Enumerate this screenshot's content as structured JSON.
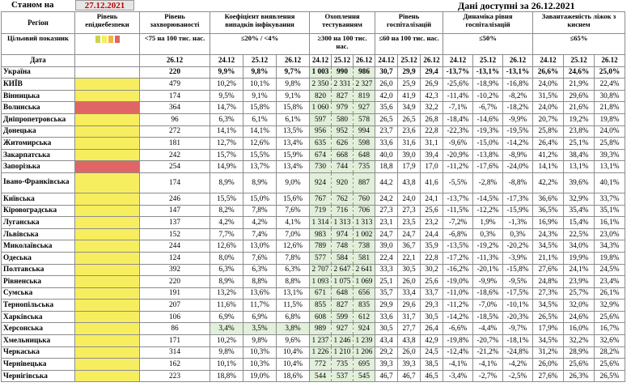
{
  "header": {
    "as_of_label": "Станом на",
    "as_of_date": "27.12.2021",
    "data_available": "Дані доступні за  26.12.2021"
  },
  "columns": {
    "region": "Регіон",
    "epid_level": "Рівень епіднебезпеки",
    "incidence": "Рівень захворюваності",
    "detection": "Коефіцієнт виявлення випадків інфікування",
    "testing": "Охоплення тестуванням",
    "hospital": "Рівень госпіталізацій",
    "hosp_dynamics": "Динаміка рівня госпіталізацій",
    "oxygen": "Завантаженість ліжок з киснем"
  },
  "target_row": {
    "label": "Цільовий показник",
    "incidence": "<75 на 100 тис. нас.",
    "detection": "≤20% / <4%",
    "testing": "≥300 на 100 тис. нас.",
    "hospital": "≤60 на 100 тис. нас.",
    "hosp_dynamics": "≤50%",
    "oxygen": "≤65%"
  },
  "level_colors": [
    "#c9d64a",
    "#f6ee5f",
    "#f5b342",
    "#e06666"
  ],
  "date_row": {
    "label": "Дата",
    "incidence": "26.12",
    "dates": [
      "24.12",
      "25.12",
      "26.12"
    ]
  },
  "rows": [
    {
      "name": "Україна",
      "level": "none",
      "inc": "220",
      "det": [
        "9,9%",
        "9,8%",
        "9,7%"
      ],
      "test": [
        "1 003",
        "990",
        "986"
      ],
      "hosp": [
        "30,7",
        "29,9",
        "29,4"
      ],
      "dyn": [
        "-13,7%",
        "-13,1%",
        "-13,1%"
      ],
      "oxy": [
        "26,6%",
        "24,6%",
        "25,0%"
      ],
      "bold": true
    },
    {
      "name": "КИЇВ",
      "level": "yellow",
      "inc": "479",
      "det": [
        "10,2%",
        "10,1%",
        "9,8%"
      ],
      "test": [
        "2 350",
        "2 331",
        "2 327"
      ],
      "hosp": [
        "26,0",
        "25,9",
        "26,9"
      ],
      "dyn": [
        "-25,6%",
        "-18,9%",
        "-16,8%"
      ],
      "oxy": [
        "24,0%",
        "21,9%",
        "22,4%"
      ]
    },
    {
      "name": "Вінницька",
      "level": "yellow",
      "inc": "174",
      "det": [
        "9,5%",
        "9,1%",
        "9,1%"
      ],
      "test": [
        "820",
        "827",
        "819"
      ],
      "hosp": [
        "42,0",
        "41,9",
        "42,3"
      ],
      "dyn": [
        "-11,4%",
        "-10,2%",
        "-8,2%"
      ],
      "oxy": [
        "31,5%",
        "29,6%",
        "30,8%"
      ]
    },
    {
      "name": "Волинська",
      "level": "red",
      "inc": "364",
      "det": [
        "14,7%",
        "15,8%",
        "15,8%"
      ],
      "test": [
        "1 060",
        "979",
        "927"
      ],
      "hosp": [
        "35,6",
        "34,9",
        "32,2"
      ],
      "dyn": [
        "-7,1%",
        "-6,7%",
        "-18,2%"
      ],
      "oxy": [
        "24,0%",
        "21,6%",
        "21,8%"
      ]
    },
    {
      "name": "Дніпропетровська",
      "level": "yellow",
      "inc": "96",
      "det": [
        "6,3%",
        "6,1%",
        "6,1%"
      ],
      "test": [
        "597",
        "580",
        "578"
      ],
      "hosp": [
        "26,5",
        "26,5",
        "26,8"
      ],
      "dyn": [
        "-18,4%",
        "-14,6%",
        "-9,9%"
      ],
      "oxy": [
        "20,7%",
        "19,2%",
        "19,8%"
      ]
    },
    {
      "name": "Донецька",
      "level": "yellow",
      "inc": "272",
      "det": [
        "14,1%",
        "14,1%",
        "13,5%"
      ],
      "test": [
        "956",
        "952",
        "994"
      ],
      "hosp": [
        "23,7",
        "23,6",
        "22,8"
      ],
      "dyn": [
        "-22,3%",
        "-19,3%",
        "-19,5%"
      ],
      "oxy": [
        "25,8%",
        "23,8%",
        "24,0%"
      ]
    },
    {
      "name": "Житомирська",
      "level": "yellow",
      "inc": "181",
      "det": [
        "12,7%",
        "12,6%",
        "13,4%"
      ],
      "test": [
        "635",
        "626",
        "598"
      ],
      "hosp": [
        "33,6",
        "31,6",
        "31,1"
      ],
      "dyn": [
        "-9,6%",
        "-15,0%",
        "-14,2%"
      ],
      "oxy": [
        "26,4%",
        "25,1%",
        "25,8%"
      ]
    },
    {
      "name": "Закарпатська",
      "level": "yellow",
      "inc": "242",
      "det": [
        "15,7%",
        "15,5%",
        "15,9%"
      ],
      "test": [
        "674",
        "668",
        "648"
      ],
      "hosp": [
        "40,0",
        "39,0",
        "39,4"
      ],
      "dyn": [
        "-20,9%",
        "-13,8%",
        "-8,9%"
      ],
      "oxy": [
        "41,2%",
        "38,4%",
        "39,3%"
      ]
    },
    {
      "name": "Запорізька",
      "level": "red",
      "inc": "254",
      "det": [
        "14,9%",
        "13,7%",
        "13,4%"
      ],
      "test": [
        "730",
        "744",
        "735"
      ],
      "hosp": [
        "18,8",
        "17,9",
        "17,0"
      ],
      "dyn": [
        "-11,2%",
        "-17,6%",
        "-24,0%"
      ],
      "oxy": [
        "14,1%",
        "13,1%",
        "13,1%"
      ]
    },
    {
      "name": "Івано-Франківська",
      "level": "yellow",
      "inc": "174",
      "det": [
        "8,9%",
        "8,9%",
        "9,0%"
      ],
      "test": [
        "924",
        "920",
        "887"
      ],
      "hosp": [
        "44,2",
        "43,8",
        "41,6"
      ],
      "dyn": [
        "-5,5%",
        "-2,8%",
        "-8,8%"
      ],
      "oxy": [
        "42,2%",
        "39,6%",
        "40,1%"
      ],
      "tall": true
    },
    {
      "name": "Київська",
      "level": "yellow",
      "inc": "246",
      "det": [
        "15,5%",
        "15,0%",
        "15,6%"
      ],
      "test": [
        "767",
        "762",
        "760"
      ],
      "hosp": [
        "24,2",
        "24,0",
        "24,1"
      ],
      "dyn": [
        "-13,7%",
        "-14,5%",
        "-17,3%"
      ],
      "oxy": [
        "36,6%",
        "32,9%",
        "33,7%"
      ]
    },
    {
      "name": "Кіровоградська",
      "level": "yellow",
      "inc": "147",
      "det": [
        "8,2%",
        "7,8%",
        "7,6%"
      ],
      "test": [
        "719",
        "716",
        "706"
      ],
      "hosp": [
        "27,3",
        "27,3",
        "25,6"
      ],
      "dyn": [
        "-11,5%",
        "-12,2%",
        "-15,9%"
      ],
      "oxy": [
        "36,5%",
        "35,4%",
        "35,1%"
      ]
    },
    {
      "name": "Луганська",
      "level": "yellow",
      "inc": "137",
      "det": [
        "4,2%",
        "4,2%",
        "4,1%"
      ],
      "test": [
        "1 314",
        "1 313",
        "1 313"
      ],
      "hosp": [
        "23,1",
        "23,5",
        "23,2"
      ],
      "dyn": [
        "-7,2%",
        "1,9%",
        "-1,3%"
      ],
      "oxy": [
        "16,9%",
        "15,4%",
        "16,1%"
      ]
    },
    {
      "name": "Львівська",
      "level": "yellow",
      "inc": "152",
      "det": [
        "7,7%",
        "7,4%",
        "7,0%"
      ],
      "test": [
        "983",
        "974",
        "1 002"
      ],
      "hosp": [
        "24,7",
        "24,7",
        "24,4"
      ],
      "dyn": [
        "-6,8%",
        "0,3%",
        "0,3%"
      ],
      "oxy": [
        "24,3%",
        "22,5%",
        "23,0%"
      ]
    },
    {
      "name": "Миколаївська",
      "level": "yellow",
      "inc": "244",
      "det": [
        "12,6%",
        "13,0%",
        "12,6%"
      ],
      "test": [
        "789",
        "748",
        "738"
      ],
      "hosp": [
        "39,0",
        "36,7",
        "35,9"
      ],
      "dyn": [
        "-13,5%",
        "-19,2%",
        "-20,2%"
      ],
      "oxy": [
        "34,5%",
        "34,0%",
        "34,3%"
      ]
    },
    {
      "name": "Одеська",
      "level": "yellow",
      "inc": "124",
      "det": [
        "8,0%",
        "7,6%",
        "7,8%"
      ],
      "test": [
        "577",
        "584",
        "581"
      ],
      "hosp": [
        "22,4",
        "22,1",
        "22,8"
      ],
      "dyn": [
        "-17,2%",
        "-11,3%",
        "-3,9%"
      ],
      "oxy": [
        "21,1%",
        "19,9%",
        "19,8%"
      ]
    },
    {
      "name": "Полтавська",
      "level": "yellow",
      "inc": "392",
      "det": [
        "6,3%",
        "6,3%",
        "6,3%"
      ],
      "test": [
        "2 707",
        "2 647",
        "2 641"
      ],
      "hosp": [
        "33,3",
        "30,5",
        "30,2"
      ],
      "dyn": [
        "-16,2%",
        "-20,1%",
        "-15,8%"
      ],
      "oxy": [
        "27,6%",
        "24,1%",
        "24,5%"
      ]
    },
    {
      "name": "Рівненська",
      "level": "yellow",
      "inc": "220",
      "det": [
        "8,9%",
        "8,8%",
        "8,8%"
      ],
      "test": [
        "1 093",
        "1 075",
        "1 069"
      ],
      "hosp": [
        "25,1",
        "26,0",
        "25,6"
      ],
      "dyn": [
        "-19,0%",
        "-9,9%",
        "-9,5%"
      ],
      "oxy": [
        "24,8%",
        "23,9%",
        "23,4%"
      ]
    },
    {
      "name": "Сумська",
      "level": "yellow",
      "inc": "191",
      "det": [
        "13,2%",
        "13,6%",
        "13,1%"
      ],
      "test": [
        "671",
        "648",
        "656"
      ],
      "hosp": [
        "35,7",
        "33,4",
        "33,7"
      ],
      "dyn": [
        "-11,0%",
        "-18,6%",
        "-17,5%"
      ],
      "oxy": [
        "27,3%",
        "25,7%",
        "26,1%"
      ]
    },
    {
      "name": "Тернопільська",
      "level": "yellow",
      "inc": "207",
      "det": [
        "11,6%",
        "11,7%",
        "11,5%"
      ],
      "test": [
        "855",
        "827",
        "835"
      ],
      "hosp": [
        "29,9",
        "29,6",
        "29,3"
      ],
      "dyn": [
        "-11,2%",
        "-7,0%",
        "-10,1%"
      ],
      "oxy": [
        "34,5%",
        "32,0%",
        "32,9%"
      ]
    },
    {
      "name": "Харківська",
      "level": "yellow",
      "inc": "106",
      "det": [
        "6,9%",
        "6,9%",
        "6,8%"
      ],
      "test": [
        "608",
        "599",
        "612"
      ],
      "hosp": [
        "33,6",
        "31,7",
        "30,5"
      ],
      "dyn": [
        "-14,2%",
        "-18,5%",
        "-20,3%"
      ],
      "oxy": [
        "26,5%",
        "24,6%",
        "25,6%"
      ]
    },
    {
      "name": "Херсонська",
      "level": "yellow",
      "inc": "86",
      "det": [
        "3,4%",
        "3,5%",
        "3,8%"
      ],
      "test": [
        "989",
        "927",
        "924"
      ],
      "hosp": [
        "30,5",
        "27,7",
        "26,4"
      ],
      "dyn": [
        "-6,6%",
        "-4,4%",
        "-9,7%"
      ],
      "oxy": [
        "17,9%",
        "16,0%",
        "16,7%"
      ],
      "green_det": true
    },
    {
      "name": "Хмельницька",
      "level": "yellow",
      "inc": "171",
      "det": [
        "10,2%",
        "9,8%",
        "9,6%"
      ],
      "test": [
        "1 237",
        "1 246",
        "1 239"
      ],
      "hosp": [
        "43,4",
        "43,8",
        "42,9"
      ],
      "dyn": [
        "-19,8%",
        "-20,7%",
        "-18,1%"
      ],
      "oxy": [
        "34,5%",
        "32,2%",
        "32,6%"
      ]
    },
    {
      "name": "Черкаська",
      "level": "yellow",
      "inc": "314",
      "det": [
        "9,8%",
        "10,3%",
        "10,4%"
      ],
      "test": [
        "1 226",
        "1 210",
        "1 206"
      ],
      "hosp": [
        "29,2",
        "26,0",
        "24,5"
      ],
      "dyn": [
        "-12,4%",
        "-21,2%",
        "-24,8%"
      ],
      "oxy": [
        "31,2%",
        "28,9%",
        "28,2%"
      ]
    },
    {
      "name": "Чернівецька",
      "level": "yellow",
      "inc": "162",
      "det": [
        "10,1%",
        "10,3%",
        "10,4%"
      ],
      "test": [
        "772",
        "735",
        "695"
      ],
      "hosp": [
        "39,3",
        "39,3",
        "38,5"
      ],
      "dyn": [
        "-4,1%",
        "-4,1%",
        "-4,2%"
      ],
      "oxy": [
        "26,0%",
        "25,6%",
        "25,6%"
      ]
    },
    {
      "name": "Чернігівська",
      "level": "yellow",
      "inc": "223",
      "det": [
        "18,8%",
        "19,0%",
        "18,6%"
      ],
      "test": [
        "544",
        "537",
        "545"
      ],
      "hosp": [
        "46,7",
        "46,7",
        "46,5"
      ],
      "dyn": [
        "-3,4%",
        "-2,7%",
        "-2,5%"
      ],
      "oxy": [
        "27,6%",
        "26,3%",
        "26,5%"
      ]
    }
  ]
}
